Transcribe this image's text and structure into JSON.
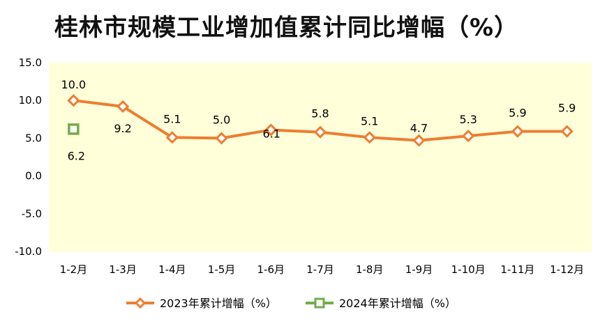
{
  "chart_data": {
    "type": "line",
    "title": "桂林市规模工业增加值累计同比增幅（%）",
    "categories": [
      "1-2月",
      "1-3月",
      "1-4月",
      "1-5月",
      "1-6月",
      "1-7月",
      "1-8月",
      "1-9月",
      "1-10月",
      "1-11月",
      "1-12月"
    ],
    "ylim": [
      -10.0,
      15.0
    ],
    "yticks": [
      "-10.0",
      "-5.0",
      "0.0",
      "5.0",
      "10.0",
      "15.0"
    ],
    "grid": false,
    "legend_position": "bottom",
    "plot_background": "#FFFFD9",
    "series": [
      {
        "name": "2023年累计增幅（%）",
        "color": "#ED7D31",
        "marker": "diamond",
        "values": [
          10.0,
          9.2,
          5.1,
          5.0,
          6.1,
          5.8,
          5.1,
          4.7,
          5.3,
          5.9,
          5.9
        ],
        "labels": [
          "10.0",
          "9.2",
          "5.1",
          "5.0",
          "6.1",
          "5.8",
          "5.1",
          "4.7",
          "5.3",
          "5.9",
          "5.9"
        ]
      },
      {
        "name": "2024年累计增幅（%）",
        "color": "#70AD47",
        "marker": "square",
        "values": [
          6.2,
          null,
          null,
          null,
          null,
          null,
          null,
          null,
          null,
          null,
          null
        ],
        "labels": [
          "6.2",
          "",
          "",
          "",
          "",
          "",
          "",
          "",
          "",
          "",
          ""
        ]
      }
    ]
  }
}
